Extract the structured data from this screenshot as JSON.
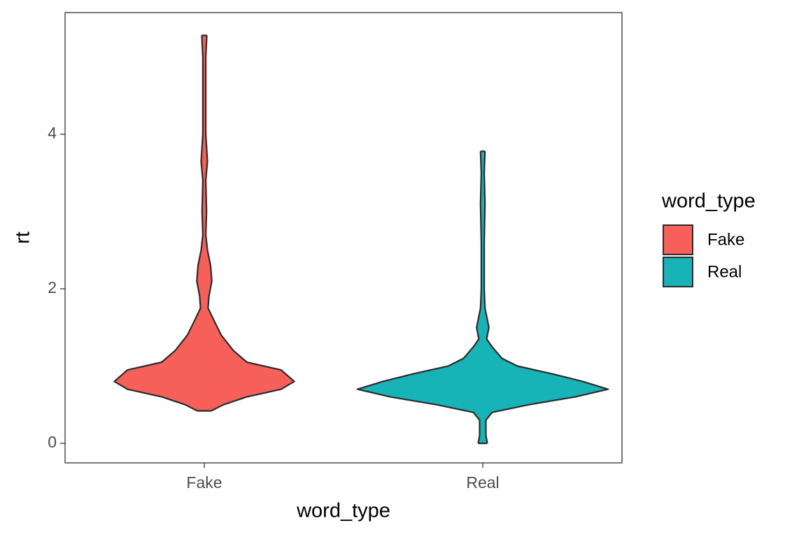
{
  "chart_data": {
    "type": "violin",
    "x_label": "word_type",
    "y_label": "rt",
    "categories": [
      "Fake",
      "Real"
    ],
    "legend_title": "word_type",
    "series": [
      {
        "name": "Fake",
        "color": "#f65f5a",
        "y": [
          5.28,
          5.0,
          4.0,
          3.65,
          3.4,
          3.0,
          2.7,
          2.5,
          2.3,
          2.1,
          1.9,
          1.75,
          1.6,
          1.4,
          1.2,
          1.05,
          0.95,
          0.8,
          0.7,
          0.6,
          0.5,
          0.42
        ],
        "density": [
          0.02,
          0.012,
          0.012,
          0.025,
          0.012,
          0.018,
          0.012,
          0.025,
          0.05,
          0.06,
          0.037,
          0.03,
          0.074,
          0.135,
          0.233,
          0.34,
          0.613,
          0.718,
          0.613,
          0.337,
          0.153,
          0.055
        ]
      },
      {
        "name": "Real",
        "color": "#18b3b7",
        "y": [
          3.78,
          3.5,
          3.1,
          2.6,
          2.3,
          2.0,
          1.75,
          1.5,
          1.35,
          1.25,
          1.1,
          1.0,
          0.9,
          0.8,
          0.7,
          0.6,
          0.5,
          0.4,
          0.3,
          0.1,
          0.0
        ],
        "density": [
          0.018,
          0.012,
          0.018,
          0.012,
          0.012,
          0.012,
          0.018,
          0.049,
          0.031,
          0.074,
          0.153,
          0.276,
          0.552,
          0.798,
          1,
          0.736,
          0.368,
          0.074,
          0.025,
          0.025,
          0.037
        ]
      }
    ],
    "ylim": [
      -0.253,
      5.575
    ],
    "yticks": [
      0,
      2,
      4
    ],
    "grid": false
  }
}
